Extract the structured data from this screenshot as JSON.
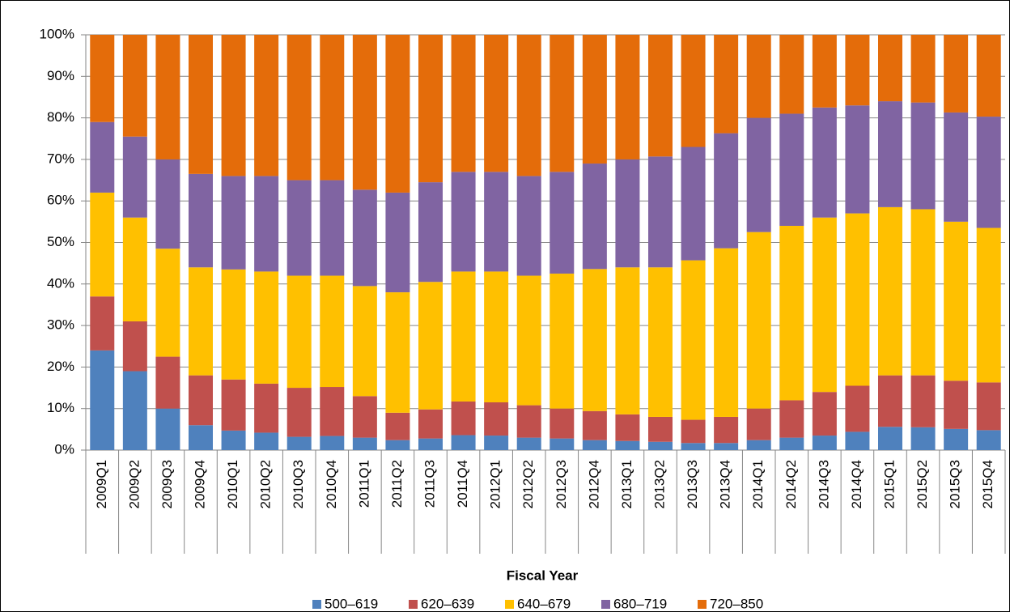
{
  "chart_data": {
    "type": "stacked_bar",
    "x_label": "Fiscal Year",
    "categories": [
      "2009Q1",
      "2009Q2",
      "2009Q3",
      "2009Q4",
      "2010Q1",
      "2010Q2",
      "2010Q3",
      "2010Q4",
      "2011Q1",
      "2011Q2",
      "2011Q3",
      "2011Q4",
      "2012Q1",
      "2012Q2",
      "2012Q3",
      "2012Q4",
      "2013Q1",
      "2013Q2",
      "2013Q3",
      "2013Q4",
      "2014Q1",
      "2014Q2",
      "2014Q3",
      "2014Q4",
      "2015Q1",
      "2015Q2",
      "2015Q3",
      "2015Q4"
    ],
    "series": [
      {
        "name": "500–619",
        "color": "#4f81bd",
        "values": [
          24,
          19,
          10,
          6,
          4.7,
          4.2,
          3.2,
          3.4,
          3,
          2.4,
          2.8,
          3.6,
          3.5,
          3,
          2.8,
          2.4,
          2.2,
          2,
          1.7,
          1.7,
          2.4,
          3,
          3.5,
          4.4,
          5.6,
          5.5,
          5.1,
          4.8
        ]
      },
      {
        "name": "620–639",
        "color": "#c0504d",
        "values": [
          13,
          12,
          12.5,
          12,
          12.3,
          11.8,
          11.8,
          11.8,
          10,
          6.6,
          7,
          8.1,
          8,
          7.8,
          7.2,
          7,
          6.4,
          6,
          5.6,
          6.3,
          7.6,
          9,
          10.5,
          11.1,
          12.4,
          12.5,
          11.6,
          11.5
        ]
      },
      {
        "name": "640–679",
        "color": "#ffc000",
        "values": [
          25,
          25,
          26,
          26,
          26.5,
          27,
          27,
          26.8,
          26.5,
          29,
          30.7,
          31.3,
          31.5,
          31.2,
          32.5,
          34.2,
          35.4,
          36,
          38.4,
          40.6,
          42.5,
          42,
          42,
          41.5,
          40.5,
          40,
          38.3,
          37.2
        ]
      },
      {
        "name": "680–719",
        "color": "#8064a2",
        "values": [
          17,
          19.5,
          21.5,
          22.5,
          22.5,
          23,
          23,
          23,
          23.2,
          24,
          24,
          24,
          24,
          24,
          24.5,
          25.4,
          26,
          26.7,
          27.3,
          27.7,
          27.5,
          27,
          26.5,
          26,
          25.5,
          25.7,
          26.3,
          26.8
        ]
      },
      {
        "name": "720–850",
        "color": "#e46c0a",
        "values": [
          21,
          24.5,
          30,
          33.5,
          34,
          34,
          35,
          35,
          37.3,
          38,
          35.5,
          33,
          33,
          34,
          33,
          31,
          30,
          29.3,
          27,
          23.7,
          20,
          19,
          17.5,
          17,
          16,
          16.3,
          18.7,
          19.7
        ]
      }
    ],
    "ylim": [
      0,
      100
    ],
    "yticks": [
      {
        "value": 0,
        "label": "0%"
      },
      {
        "value": 10,
        "label": "10%"
      },
      {
        "value": 20,
        "label": "20%"
      },
      {
        "value": 30,
        "label": "30%"
      },
      {
        "value": 40,
        "label": "40%"
      },
      {
        "value": 50,
        "label": "50%"
      },
      {
        "value": 60,
        "label": "60%"
      },
      {
        "value": 70,
        "label": "70%"
      },
      {
        "value": 80,
        "label": "80%"
      },
      {
        "value": 90,
        "label": "90%"
      },
      {
        "value": 100,
        "label": "100%"
      }
    ],
    "grid": true,
    "legend": "bottom"
  }
}
